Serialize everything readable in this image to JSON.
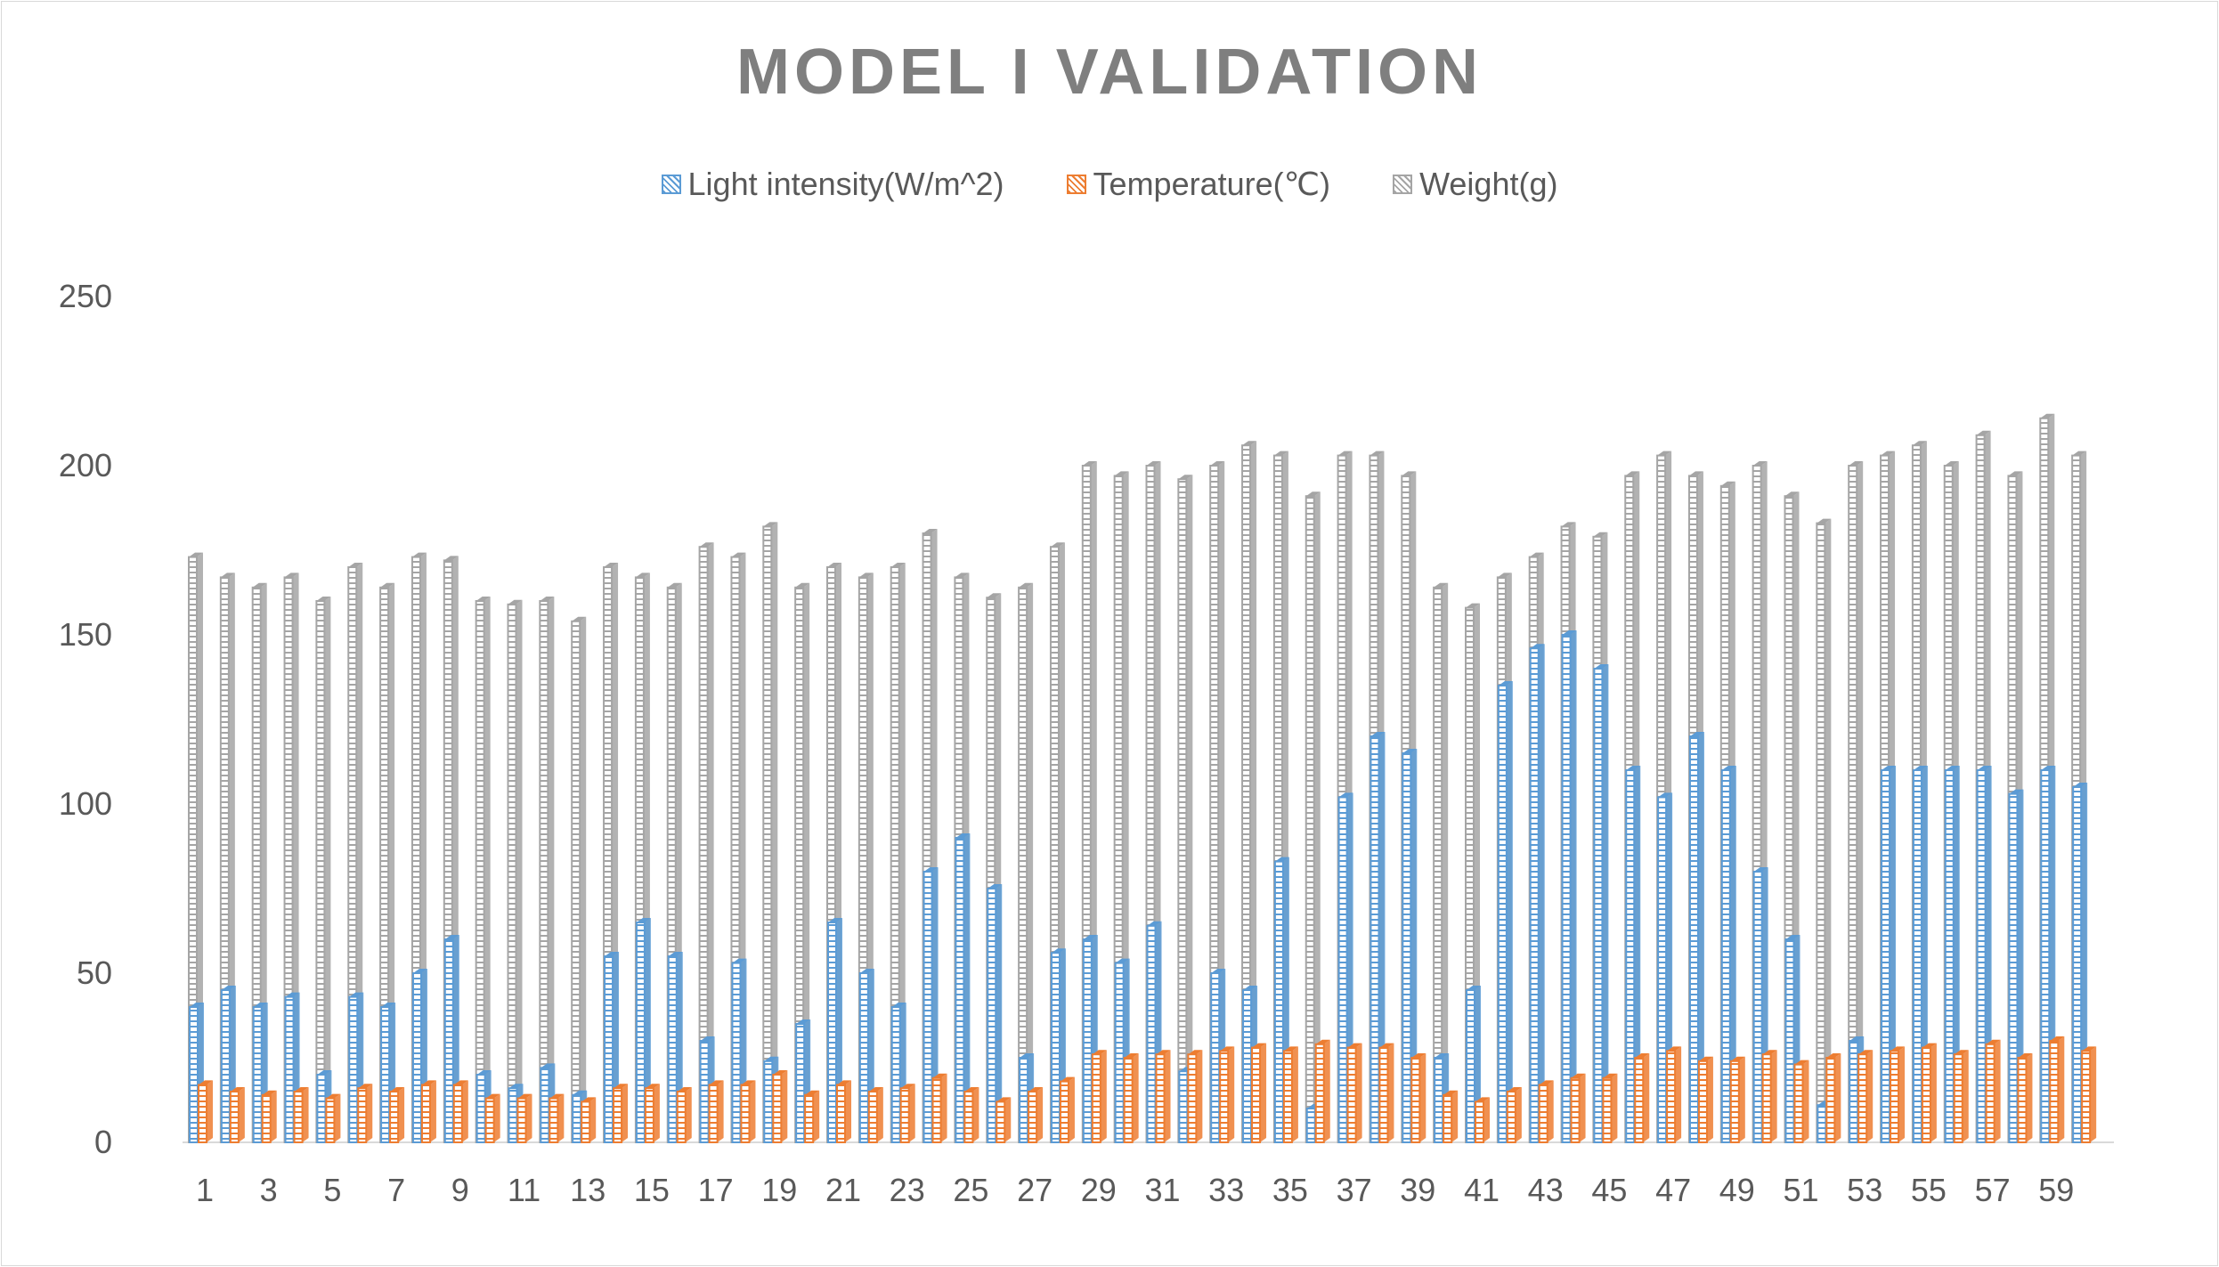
{
  "chart_data": {
    "type": "bar",
    "title": "MODEL I VALIDATION",
    "xlabel": "",
    "ylabel": "",
    "ylim": [
      0,
      250
    ],
    "yticks": [
      0,
      50,
      100,
      150,
      200,
      250
    ],
    "grid": false,
    "legend_position": "top",
    "categories": [
      1,
      2,
      3,
      4,
      5,
      6,
      7,
      8,
      9,
      10,
      11,
      12,
      13,
      14,
      15,
      16,
      17,
      18,
      19,
      20,
      21,
      22,
      23,
      24,
      25,
      26,
      27,
      28,
      29,
      30,
      31,
      32,
      33,
      34,
      35,
      36,
      37,
      38,
      39,
      40,
      41,
      42,
      43,
      44,
      45,
      46,
      47,
      48,
      49,
      50,
      51,
      52,
      53,
      54,
      55,
      56,
      57,
      58,
      59,
      60
    ],
    "x_tick_labels": [
      "1",
      "3",
      "5",
      "7",
      "9",
      "11",
      "13",
      "15",
      "17",
      "19",
      "21",
      "23",
      "25",
      "27",
      "29",
      "31",
      "33",
      "35",
      "37",
      "39",
      "41",
      "43",
      "45",
      "47",
      "49",
      "51",
      "53",
      "55",
      "57",
      "59"
    ],
    "series": [
      {
        "name": "Light intensity(W/m^2)",
        "color": "#5b9bd5",
        "values": [
          40,
          45,
          40,
          43,
          20,
          43,
          40,
          50,
          60,
          20,
          16,
          22,
          14,
          55,
          65,
          55,
          30,
          53,
          24,
          35,
          65,
          50,
          40,
          80,
          90,
          75,
          25,
          56,
          60,
          53,
          64,
          21,
          50,
          45,
          83,
          10,
          102,
          120,
          115,
          25,
          45,
          135,
          146,
          150,
          140,
          110,
          102,
          120,
          110,
          80,
          60,
          11,
          30,
          110,
          110,
          110,
          110,
          103,
          110,
          105
        ]
      },
      {
        "name": "Temperature(℃)",
        "color": "#ed7d31",
        "values": [
          17,
          15,
          14,
          15,
          13,
          16,
          15,
          17,
          17,
          13,
          13,
          13,
          12,
          16,
          16,
          15,
          17,
          17,
          20,
          14,
          17,
          15,
          16,
          19,
          15,
          12,
          15,
          18,
          26,
          25,
          26,
          26,
          27,
          28,
          27,
          29,
          28,
          28,
          25,
          14,
          12,
          15,
          17,
          19,
          19,
          25,
          27,
          24,
          24,
          26,
          23,
          25,
          26,
          27,
          28,
          26,
          29,
          25,
          30,
          27
        ]
      },
      {
        "name": "Weight(g)",
        "color": "#a5a5a5",
        "values": [
          173,
          167,
          164,
          167,
          160,
          170,
          164,
          173,
          172,
          160,
          159,
          160,
          154,
          170,
          167,
          164,
          176,
          173,
          182,
          164,
          170,
          167,
          170,
          180,
          167,
          161,
          164,
          176,
          200,
          197,
          200,
          196,
          200,
          206,
          203,
          191,
          203,
          203,
          197,
          164,
          158,
          167,
          173,
          182,
          179,
          197,
          203,
          197,
          194,
          200,
          191,
          183,
          200,
          203,
          206,
          200,
          209,
          197,
          214,
          203
        ]
      }
    ]
  }
}
